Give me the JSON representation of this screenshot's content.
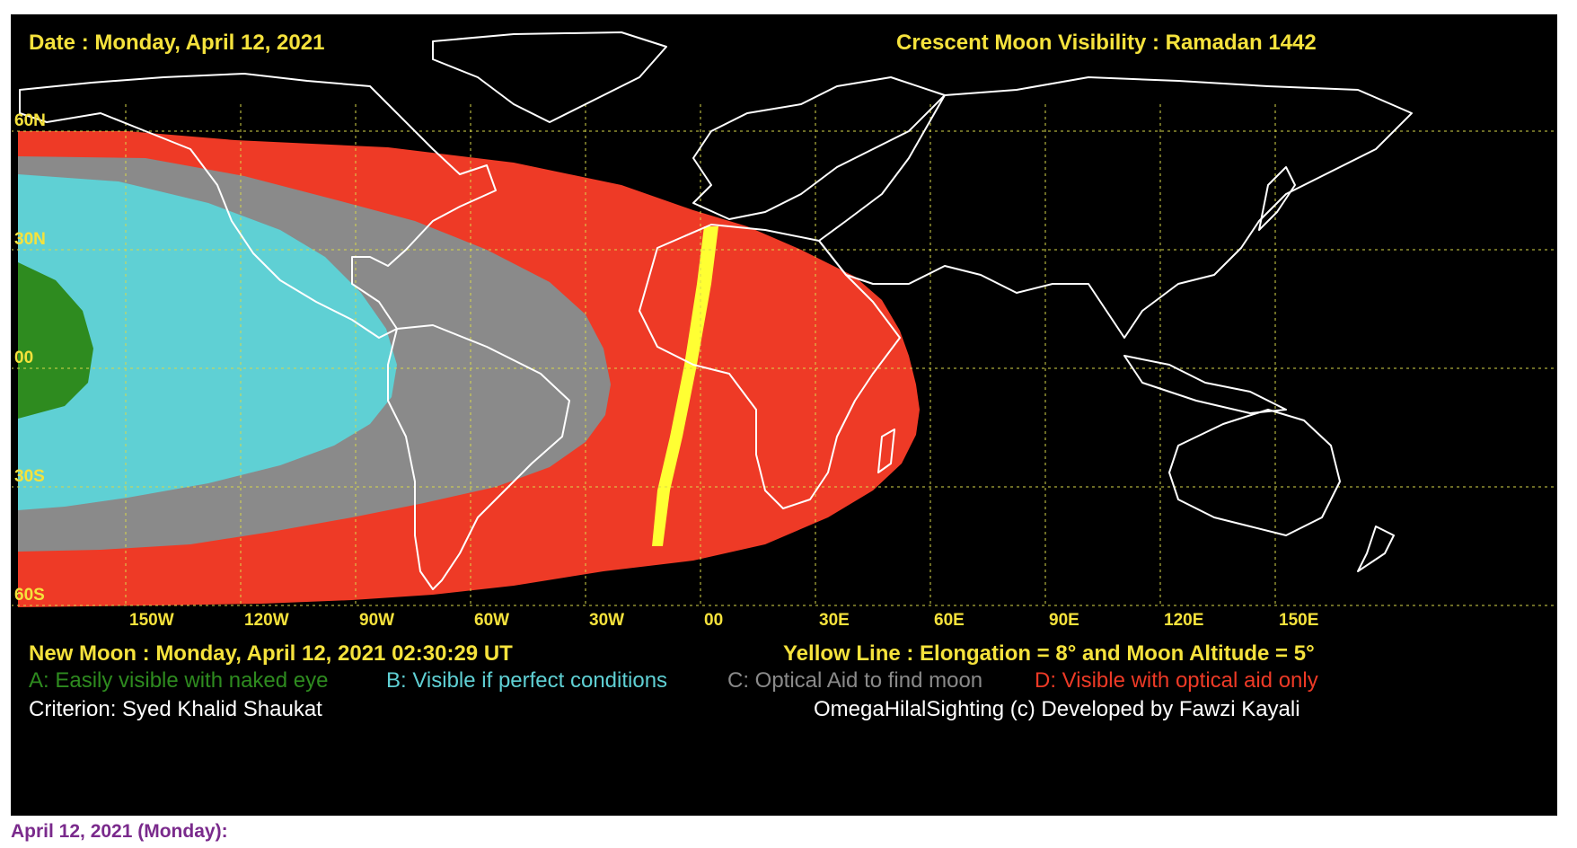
{
  "header": {
    "date": "Date : Monday, April 12, 2021",
    "title": "Crescent Moon Visibility : Ramadan  1442"
  },
  "latitude_labels": [
    "60N",
    "30N",
    "00",
    "30S",
    "60S"
  ],
  "longitude_labels": [
    "150W",
    "120W",
    "90W",
    "60W",
    "30W",
    "00",
    "30E",
    "60E",
    "90E",
    "120E",
    "150E"
  ],
  "footer": {
    "new_moon": "New Moon : Monday, April 12, 2021  02:30:29  UT",
    "yellow_line": "Yellow Line : Elongation = 8° and Moon Altitude = 5°",
    "criterion": "Criterion: Syed Khalid Shaukat",
    "credit": "OmegaHilalSighting  (c)  Developed by Fawzi Kayali"
  },
  "legend": [
    {
      "key": "A",
      "text": "A: Easily visible with naked eye",
      "color": "#2e8b1f"
    },
    {
      "key": "B",
      "text": "B: Visible if perfect conditions",
      "color": "#5fd0d4"
    },
    {
      "key": "C",
      "text": "C: Optical Aid to find moon",
      "color": "#8a8a8a"
    },
    {
      "key": "D",
      "text": "D: Visible with optical aid only",
      "color": "#ee3a26"
    }
  ],
  "colors": {
    "background": "#000000",
    "label_yellow": "#f5e23c",
    "zone_a": "#2e8b1f",
    "zone_b": "#5fd0d4",
    "zone_c": "#8a8a8a",
    "zone_d": "#ee3a26",
    "yellow_line": "#ffff33",
    "coastline": "#ffffff",
    "caption": "#7a2a8c"
  },
  "caption": "April 12, 2021 (Monday):"
}
